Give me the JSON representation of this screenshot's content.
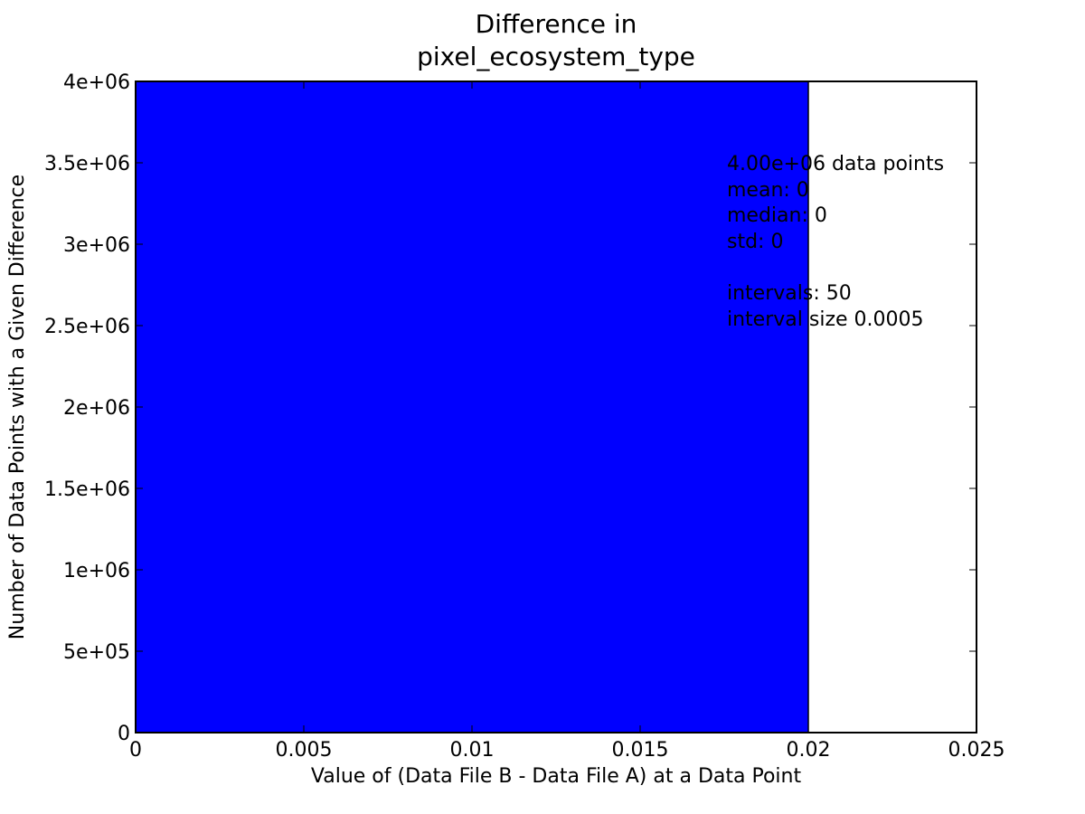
{
  "chart_data": {
    "type": "bar",
    "title_lines": [
      "Difference in",
      "pixel_ecosystem_type"
    ],
    "xlabel": "Value of (Data File B - Data File A) at a Data Point",
    "ylabel": "Number of Data Points with a Given Difference",
    "xlim": [
      0,
      0.025
    ],
    "ylim": [
      0,
      4000000
    ],
    "x_ticks": [
      {
        "value": 0,
        "label": "0"
      },
      {
        "value": 0.005,
        "label": "0.005"
      },
      {
        "value": 0.01,
        "label": "0.01"
      },
      {
        "value": 0.015,
        "label": "0.015"
      },
      {
        "value": 0.02,
        "label": "0.02"
      },
      {
        "value": 0.025,
        "label": "0.025"
      }
    ],
    "y_ticks": [
      {
        "value": 0,
        "label": "0"
      },
      {
        "value": 500000,
        "label": "5e+05"
      },
      {
        "value": 1000000,
        "label": "1e+06"
      },
      {
        "value": 1500000,
        "label": "1.5e+06"
      },
      {
        "value": 2000000,
        "label": "2e+06"
      },
      {
        "value": 2500000,
        "label": "2.5e+06"
      },
      {
        "value": 3000000,
        "label": "3e+06"
      },
      {
        "value": 3500000,
        "label": "3.5e+06"
      },
      {
        "value": 4000000,
        "label": "4e+06"
      }
    ],
    "bars": [
      {
        "x_start": 0,
        "x_end": 0.02,
        "value": 4000000
      }
    ],
    "bar_color": "#0000ff",
    "grid": false,
    "stats_lines": [
      "4.00e+06 data points",
      "mean: 0",
      "median: 0",
      "std: 0",
      "",
      "intervals: 50",
      "interval size 0.0005"
    ]
  }
}
